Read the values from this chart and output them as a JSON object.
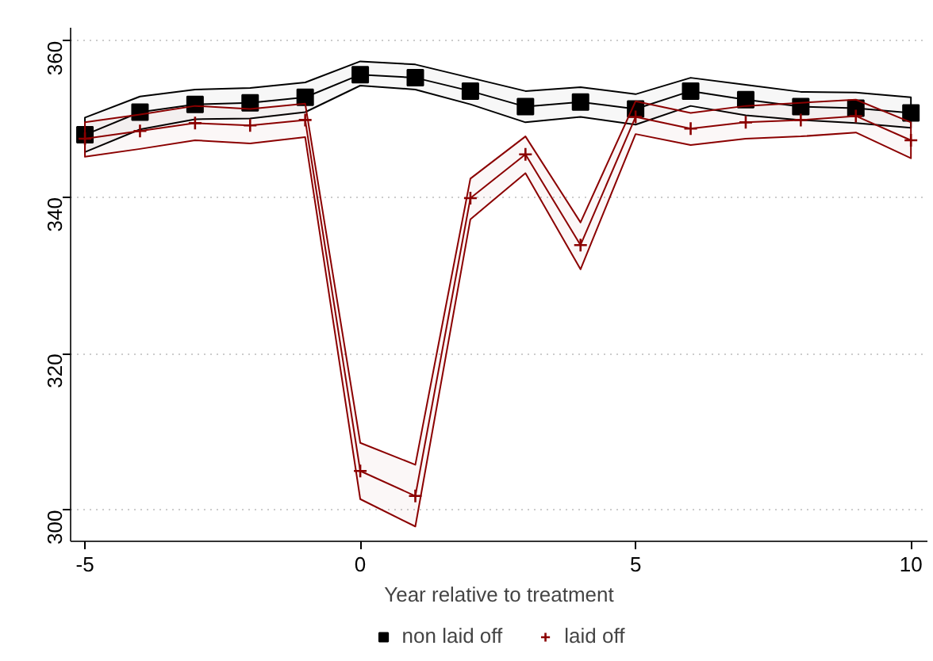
{
  "chart_data": {
    "type": "line",
    "xlabel": "Year relative to treatment",
    "x": [
      -5,
      -4,
      -3,
      -2,
      -1,
      0,
      1,
      2,
      3,
      4,
      5,
      6,
      7,
      8,
      9,
      10
    ],
    "series": [
      {
        "name": "non laid off",
        "color": "#000000",
        "marker": "square",
        "values": [
          348.0,
          350.9,
          351.9,
          352.1,
          352.8,
          355.7,
          355.3,
          353.6,
          351.6,
          352.2,
          351.3,
          353.6,
          352.5,
          351.6,
          351.4,
          350.8
        ],
        "lower": [
          345.8,
          348.7,
          350.0,
          350.1,
          350.9,
          354.3,
          353.8,
          351.9,
          349.6,
          350.3,
          349.3,
          351.7,
          350.5,
          349.9,
          349.5,
          348.9
        ],
        "upper": [
          350.2,
          352.9,
          353.8,
          354.0,
          354.7,
          357.4,
          357.0,
          355.3,
          353.6,
          354.1,
          353.2,
          355.3,
          354.4,
          353.5,
          353.4,
          352.8
        ]
      },
      {
        "name": "laid off",
        "color": "#8b0000",
        "marker": "cross",
        "values": [
          347.5,
          348.5,
          349.5,
          349.2,
          349.9,
          305.0,
          301.8,
          339.9,
          345.5,
          333.9,
          350.3,
          348.8,
          349.6,
          349.9,
          350.4,
          347.3
        ],
        "lower": [
          345.2,
          346.2,
          347.3,
          346.9,
          347.7,
          301.4,
          297.9,
          337.2,
          343.1,
          330.8,
          348.1,
          346.7,
          347.5,
          347.8,
          348.3,
          345.0
        ],
        "upper": [
          349.6,
          350.6,
          351.7,
          351.3,
          352.0,
          308.6,
          305.8,
          342.4,
          347.8,
          336.8,
          352.3,
          350.8,
          351.7,
          352.1,
          352.5,
          349.6
        ]
      }
    ],
    "xlim": [
      -5.26,
      10.3
    ],
    "ylim": [
      296.0,
      361.7
    ],
    "xticks": [
      -5,
      0,
      5,
      10
    ],
    "yticks": [
      300,
      320,
      340,
      360
    ],
    "grid": "y",
    "legend": "bottom",
    "line_style": "solid"
  }
}
